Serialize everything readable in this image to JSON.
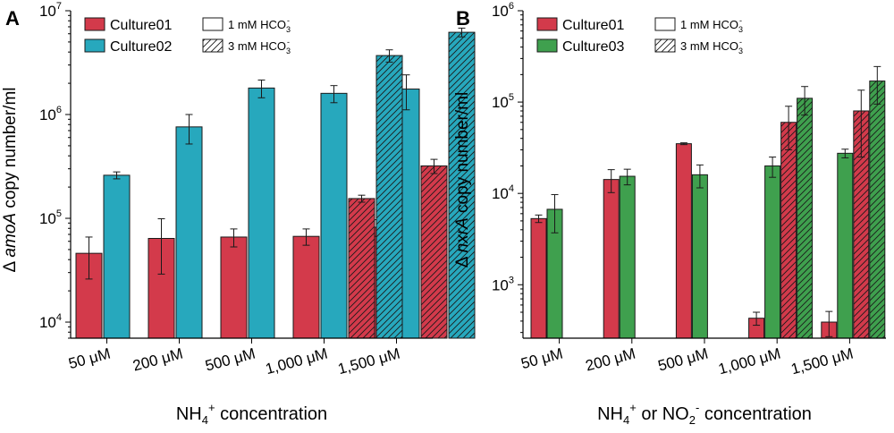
{
  "chart_data": [
    {
      "type": "bar",
      "panel": "A",
      "yscale": "log",
      "ylim": [
        7000,
        10000000
      ],
      "ylabel": {
        "pre": "Δ ",
        "gene": "amoA",
        "post": " copy number/ml"
      },
      "xlabel": {
        "parts": [
          {
            "t": "NH"
          },
          {
            "t": "4",
            "sub": true
          },
          {
            "t": "+",
            "sup": true
          },
          {
            "t": " concentration"
          }
        ]
      },
      "categories": [
        "50 μM",
        "200 μM",
        "500 μM",
        "1,000 μM",
        "1,500 μM"
      ],
      "yticks": [
        {
          "value": 10000,
          "base": "10",
          "exp": "4"
        },
        {
          "value": 100000,
          "base": "10",
          "exp": "5"
        },
        {
          "value": 1000000,
          "base": "10",
          "exp": "6"
        },
        {
          "value": 10000000,
          "base": "10",
          "exp": "7"
        }
      ],
      "legend": {
        "position": "top-left",
        "series_labels": [
          "Culture01",
          "Culture02"
        ],
        "hco3_labels": [
          "1 mM HCO",
          "3 mM HCO"
        ],
        "hco3_sub": "3",
        "hco3_sup": "-"
      },
      "series": [
        {
          "name": "Culture01",
          "color": "#d33a4b",
          "hatch": false,
          "values": [
            46000,
            64000,
            66000,
            67000,
            82000
          ],
          "errors": [
            20000,
            35000,
            13000,
            12000,
            15000
          ]
        },
        {
          "name": "Culture02",
          "color": "#27a8bd",
          "hatch": false,
          "values": [
            260000,
            760000,
            1800000,
            1600000,
            1760000
          ],
          "errors": [
            20000,
            240000,
            350000,
            300000,
            650000
          ]
        },
        {
          "name": "Culture01 (3 mM HCO3-)",
          "color": "#d33a4b",
          "hatch": true,
          "values": [
            null,
            null,
            null,
            155000,
            320000
          ],
          "errors": [
            null,
            null,
            null,
            12000,
            50000
          ]
        },
        {
          "name": "Culture02 (3 mM HCO3-)",
          "color": "#27a8bd",
          "hatch": true,
          "values": [
            null,
            null,
            null,
            3700000,
            6200000
          ],
          "errors": [
            null,
            null,
            null,
            500000,
            600000
          ]
        }
      ]
    },
    {
      "type": "bar",
      "panel": "B",
      "yscale": "log",
      "ylim": [
        260,
        1000000
      ],
      "ylabel": {
        "pre": "Δ ",
        "gene": "nxrA",
        "post": " copy number/ml"
      },
      "xlabel": {
        "parts": [
          {
            "t": "NH"
          },
          {
            "t": "4",
            "sub": true
          },
          {
            "t": "+",
            "sup": true
          },
          {
            "t": " or NO"
          },
          {
            "t": "2",
            "sub": true
          },
          {
            "t": "-",
            "sup": true
          },
          {
            "t": " concentration"
          }
        ]
      },
      "categories": [
        "50 μM",
        "200 μM",
        "500 μM",
        "1,000 μM",
        "1,500 μM"
      ],
      "yticks": [
        {
          "value": 1000,
          "base": "10",
          "exp": "3"
        },
        {
          "value": 10000,
          "base": "10",
          "exp": "4"
        },
        {
          "value": 100000,
          "base": "10",
          "exp": "5"
        },
        {
          "value": 1000000,
          "base": "10",
          "exp": "6"
        }
      ],
      "legend": {
        "position": "top-left",
        "series_labels": [
          "Culture01",
          "Culture03"
        ],
        "hco3_labels": [
          "1 mM HCO",
          "3 mM HCO"
        ],
        "hco3_sub": "3",
        "hco3_sup": "-"
      },
      "series": [
        {
          "name": "Culture01",
          "color": "#d33a4b",
          "hatch": false,
          "values": [
            5300,
            14200,
            35000,
            430,
            390
          ],
          "errors": [
            500,
            4000,
            800,
            70,
            120
          ]
        },
        {
          "name": "Culture03",
          "color": "#3fa04e",
          "hatch": false,
          "values": [
            6700,
            15400,
            16000,
            20000,
            27500
          ],
          "errors": [
            3000,
            3000,
            4500,
            5000,
            3000
          ]
        },
        {
          "name": "Culture01 (3 mM HCO3-)",
          "color": "#d33a4b",
          "hatch": true,
          "values": [
            null,
            null,
            null,
            60000,
            80000
          ],
          "errors": [
            null,
            null,
            null,
            30000,
            55000
          ]
        },
        {
          "name": "Culture03 (3 mM HCO3-)",
          "color": "#3fa04e",
          "hatch": true,
          "values": [
            null,
            null,
            null,
            110000,
            170000
          ],
          "errors": [
            null,
            null,
            null,
            38000,
            75000
          ]
        }
      ]
    }
  ]
}
